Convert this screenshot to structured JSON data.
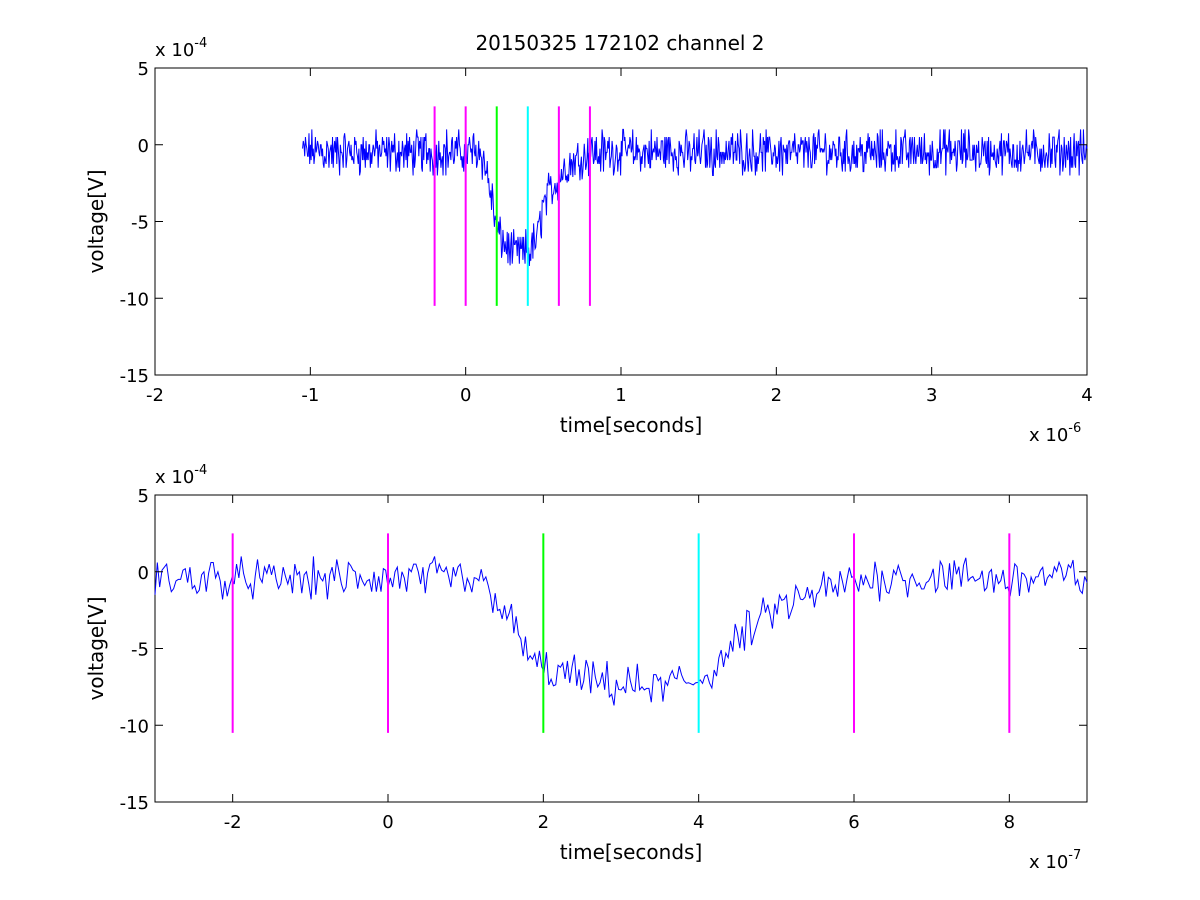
{
  "figure": {
    "title": "20150325 172102 channel 2"
  },
  "chart_data": [
    {
      "type": "line",
      "title": "20150325 172102 channel 2",
      "xlabel": "time[seconds]",
      "ylabel": "voltage[V]",
      "x_multiplier": "x 10",
      "x_exponent": "-6",
      "y_multiplier": "x 10",
      "y_exponent": "-4",
      "xlim": [
        -2,
        4
      ],
      "ylim": [
        -15,
        5
      ],
      "xticks": [
        -2,
        -1,
        0,
        1,
        2,
        3,
        4
      ],
      "yticks": [
        -15,
        -10,
        -5,
        0,
        5
      ],
      "line_color": "#0000ff",
      "series": [
        {
          "points_desc": "noisy trace from -1.05 to 4.0 (x1e-6 s): baseline ~ -0.5 with noise amplitude ~±2; dip to about -7 between 0.2 and 0.4, recovering by ~0.8",
          "x": [
            -1.05,
            -0.8,
            -0.6,
            -0.4,
            -0.2,
            0.0,
            0.1,
            0.15,
            0.2,
            0.25,
            0.3,
            0.35,
            0.4,
            0.45,
            0.5,
            0.6,
            0.7,
            0.8,
            1.0,
            1.5,
            2.0,
            2.5,
            3.0,
            3.5,
            4.0
          ],
          "values": [
            -0.5,
            -0.5,
            -0.5,
            -0.5,
            -0.5,
            -0.5,
            -0.5,
            -2.5,
            -5.5,
            -6.5,
            -7.0,
            -7.0,
            -7.0,
            -6.5,
            -4.0,
            -2.0,
            -1.0,
            -0.5,
            -0.5,
            -0.5,
            -0.5,
            -0.5,
            -0.5,
            -0.5,
            -0.5
          ]
        }
      ],
      "markers": [
        {
          "x": -0.2,
          "color": "#ff00ff",
          "ymin": -10.5,
          "ymax": 2.5
        },
        {
          "x": 0.0,
          "color": "#ff00ff",
          "ymin": -10.5,
          "ymax": 2.5
        },
        {
          "x": 0.2,
          "color": "#00ff00",
          "ymin": -10.5,
          "ymax": 2.5
        },
        {
          "x": 0.4,
          "color": "#00ffff",
          "ymin": -10.5,
          "ymax": 2.5
        },
        {
          "x": 0.6,
          "color": "#ff00ff",
          "ymin": -10.5,
          "ymax": 2.5
        },
        {
          "x": 0.8,
          "color": "#ff00ff",
          "ymin": -10.5,
          "ymax": 2.5
        }
      ]
    },
    {
      "type": "line",
      "title": "",
      "xlabel": "time[seconds]",
      "ylabel": "voltage[V]",
      "x_multiplier": "x 10",
      "x_exponent": "-7",
      "y_multiplier": "x 10",
      "y_exponent": "-4",
      "xlim": [
        -3,
        9
      ],
      "ylim": [
        -15,
        5
      ],
      "xticks": [
        -2,
        0,
        2,
        4,
        6,
        8
      ],
      "yticks": [
        -15,
        -10,
        -5,
        0,
        5
      ],
      "line_color": "#0000ff",
      "series": [
        {
          "points_desc": "zoomed trace from -3 to 9 (x1e-7 s): baseline ~ -0.5, drop starting ~1.3 to about -7 between 2 and 4, recovery to ~0 by ~6",
          "x": [
            -3.0,
            -2.0,
            -1.0,
            0.0,
            1.0,
            1.3,
            1.5,
            1.7,
            1.9,
            2.0,
            2.5,
            3.0,
            3.5,
            4.0,
            4.2,
            4.5,
            5.0,
            5.5,
            6.0,
            7.0,
            8.0,
            9.0
          ],
          "values": [
            -0.5,
            -0.5,
            -0.5,
            -0.5,
            -0.5,
            -1.0,
            -2.5,
            -4.5,
            -6.0,
            -6.5,
            -7.0,
            -7.5,
            -7.5,
            -7.0,
            -6.5,
            -4.5,
            -2.5,
            -1.5,
            -0.5,
            -0.3,
            -0.5,
            -0.3
          ]
        }
      ],
      "markers": [
        {
          "x": -2.0,
          "color": "#ff00ff",
          "ymin": -10.5,
          "ymax": 2.5
        },
        {
          "x": 0.0,
          "color": "#ff00ff",
          "ymin": -10.5,
          "ymax": 2.5
        },
        {
          "x": 2.0,
          "color": "#00ff00",
          "ymin": -10.5,
          "ymax": 2.5
        },
        {
          "x": 4.0,
          "color": "#00ffff",
          "ymin": -10.5,
          "ymax": 2.5
        },
        {
          "x": 6.0,
          "color": "#ff00ff",
          "ymin": -10.5,
          "ymax": 2.5
        },
        {
          "x": 8.0,
          "color": "#ff00ff",
          "ymin": -10.5,
          "ymax": 2.5
        }
      ]
    }
  ]
}
